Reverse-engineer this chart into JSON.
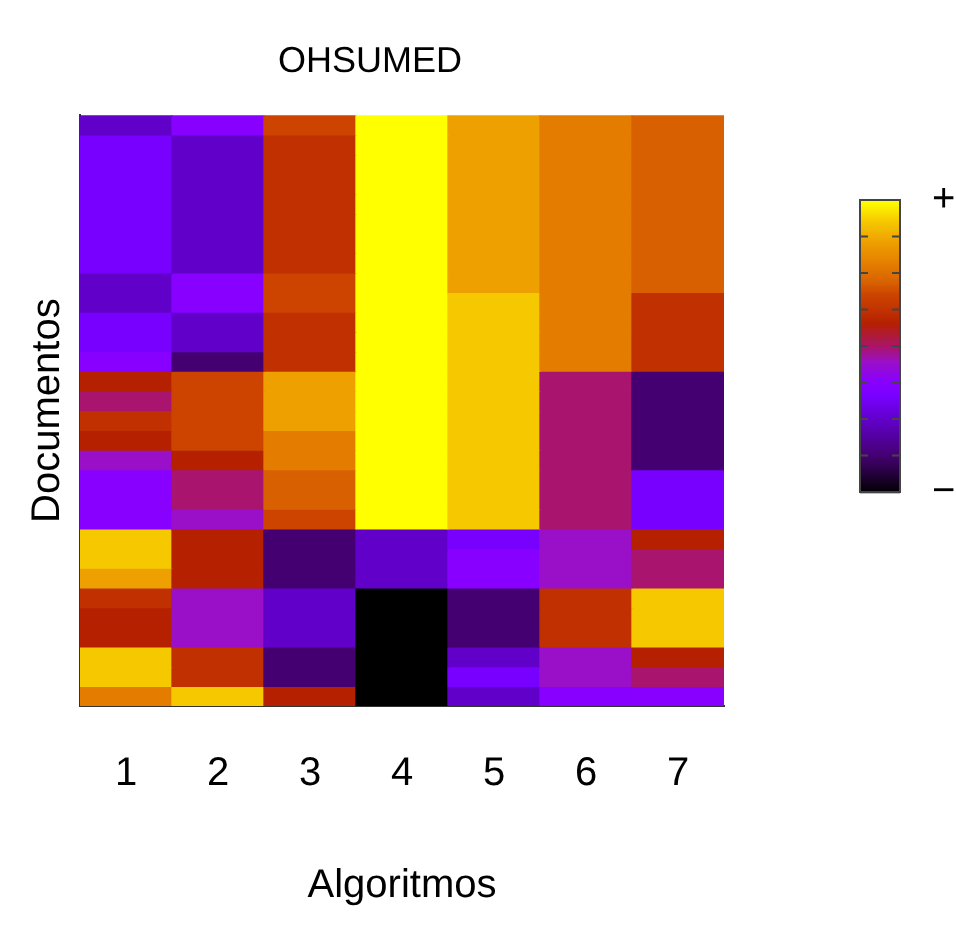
{
  "chart_data": {
    "type": "heatmap",
    "title": "OHSUMED",
    "xlabel": "Algoritmos",
    "ylabel": "Documentos",
    "tick_labels": "x",
    "categories": [
      "1",
      "2",
      "3",
      "4",
      "5",
      "6",
      "7"
    ],
    "y_categories": [
      null,
      null,
      null,
      null,
      null,
      null,
      null,
      null,
      null,
      null,
      null,
      null,
      null,
      null,
      null,
      null,
      null,
      null,
      null,
      null,
      null,
      null,
      null,
      null,
      null,
      null,
      null,
      null,
      null,
      null
    ],
    "cells": [
      [
        0.25,
        0.38,
        0.68,
        1,
        0.86,
        0.78,
        0.72
      ],
      [
        0.33,
        0.25,
        0.62,
        1,
        0.86,
        0.78,
        0.72
      ],
      [
        0.33,
        0.25,
        0.62,
        1,
        0.86,
        0.78,
        0.72
      ],
      [
        0.33,
        0.25,
        0.62,
        1,
        0.86,
        0.78,
        0.72
      ],
      [
        0.33,
        0.25,
        0.62,
        1,
        0.86,
        0.78,
        0.72
      ],
      [
        0.33,
        0.25,
        0.62,
        1,
        0.86,
        0.78,
        0.72
      ],
      [
        0.33,
        0.25,
        0.62,
        1,
        0.86,
        0.78,
        0.72
      ],
      [
        0.33,
        0.25,
        0.62,
        1,
        0.86,
        0.78,
        0.72
      ],
      [
        0.25,
        0.38,
        0.68,
        1,
        0.86,
        0.78,
        0.72
      ],
      [
        0.25,
        0.38,
        0.68,
        1,
        0.93,
        0.78,
        0.62
      ],
      [
        0.33,
        0.25,
        0.62,
        1,
        0.93,
        0.78,
        0.62
      ],
      [
        0.33,
        0.25,
        0.62,
        1,
        0.93,
        0.78,
        0.62
      ],
      [
        0.38,
        0.125,
        0.62,
        1,
        0.93,
        0.78,
        0.62
      ],
      [
        0.58,
        0.68,
        0.86,
        1,
        0.93,
        0.5,
        0.125
      ],
      [
        0.5,
        0.68,
        0.86,
        1,
        0.93,
        0.5,
        0.125
      ],
      [
        0.62,
        0.68,
        0.86,
        1,
        0.93,
        0.5,
        0.125
      ],
      [
        0.58,
        0.68,
        0.78,
        1,
        0.93,
        0.5,
        0.125
      ],
      [
        0.45,
        0.58,
        0.78,
        1,
        0.93,
        0.5,
        0.125
      ],
      [
        0.38,
        0.5,
        0.72,
        1,
        0.93,
        0.5,
        0.33
      ],
      [
        0.38,
        0.5,
        0.72,
        1,
        0.93,
        0.5,
        0.33
      ],
      [
        0.38,
        0.45,
        0.68,
        1,
        0.93,
        0.5,
        0.33
      ],
      [
        0.93,
        0.58,
        0.125,
        0.25,
        0.33,
        0.45,
        0.58
      ],
      [
        0.93,
        0.58,
        0.125,
        0.25,
        0.38,
        0.45,
        0.5
      ],
      [
        0.86,
        0.58,
        0.125,
        0.25,
        0.38,
        0.45,
        0.5
      ],
      [
        0.62,
        0.45,
        0.25,
        0,
        0.125,
        0.62,
        0.93
      ],
      [
        0.58,
        0.45,
        0.25,
        0,
        0.125,
        0.62,
        0.93
      ],
      [
        0.58,
        0.45,
        0.25,
        0,
        0.125,
        0.62,
        0.93
      ],
      [
        0.93,
        0.62,
        0.125,
        0,
        0.25,
        0.45,
        0.58
      ],
      [
        0.93,
        0.62,
        0.125,
        0,
        0.33,
        0.45,
        0.5
      ],
      [
        0.78,
        0.93,
        0.58,
        0,
        0.25,
        0.38,
        0.38
      ]
    ],
    "clim": [
      0,
      1
    ],
    "cticks": [
      {
        "value": 0,
        "label": "−"
      },
      {
        "value": 0.125,
        "label": null
      },
      {
        "value": 0.25,
        "label": null
      },
      {
        "value": 0.375,
        "label": null
      },
      {
        "value": 0.5,
        "label": null
      },
      {
        "value": 0.625,
        "label": null
      },
      {
        "value": 0.75,
        "label": null
      },
      {
        "value": 0.875,
        "label": null
      },
      {
        "value": 1,
        "label": "+"
      }
    ]
  }
}
